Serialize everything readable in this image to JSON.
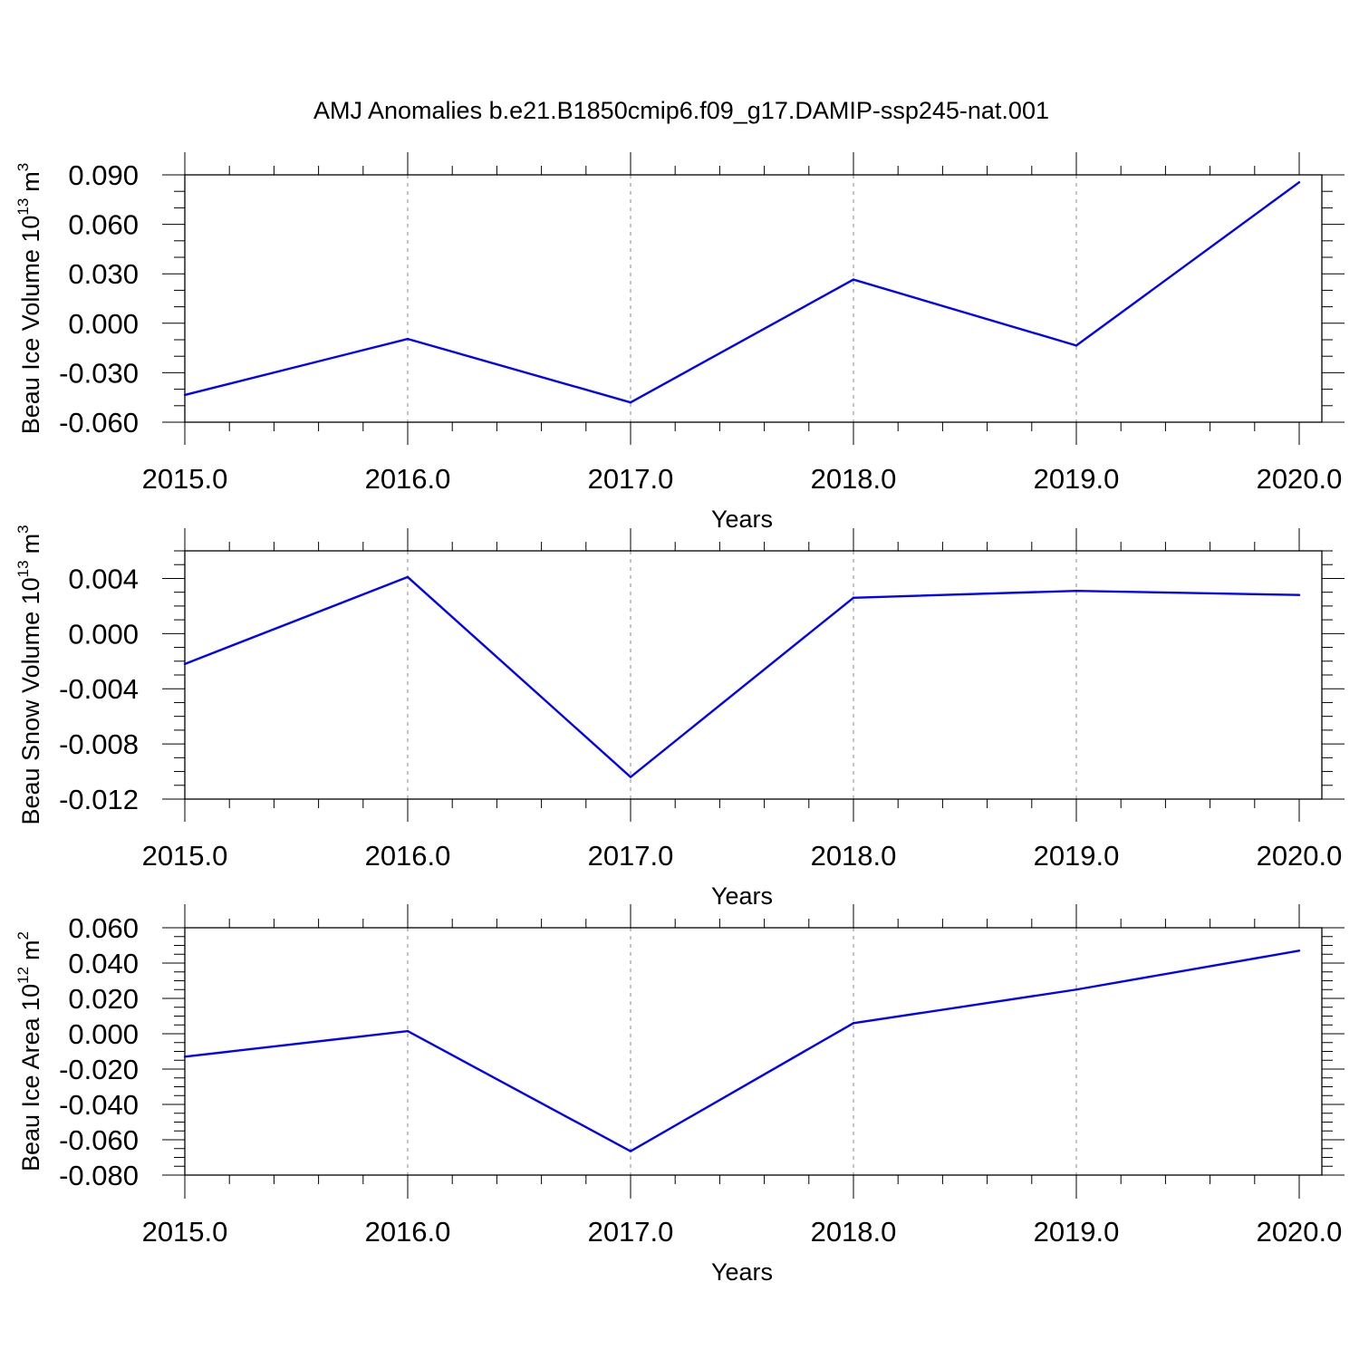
{
  "title": "AMJ Anomalies b.e21.B1850cmip6.f09_g17.DAMIP-ssp245-nat.001",
  "colors": {
    "line": "#0000ff",
    "axes": "#000000",
    "grid": "#888888"
  },
  "chart_data": [
    {
      "type": "line",
      "ylabel": "Beau Ice Volume 10",
      "ylabel_exp": "13",
      "ylabel_unit": "m",
      "ylabel_unit_exp": "3",
      "xlabel": "Years",
      "x": [
        2015,
        2016,
        2017,
        2018,
        2019,
        2020
      ],
      "xticks": [
        "2015.0",
        "2016.0",
        "2017.0",
        "2018.0",
        "2019.0",
        "2020.0"
      ],
      "values": [
        -0.0435,
        -0.0095,
        -0.048,
        0.0265,
        -0.0135,
        0.0855
      ],
      "ylim": [
        -0.06,
        0.09
      ],
      "yticks": [
        -0.06,
        -0.03,
        0.0,
        0.03,
        0.06,
        0.09
      ],
      "yticklabels": [
        "-0.060",
        "-0.030",
        "0.000",
        "0.030",
        "0.060",
        "0.090"
      ],
      "yminor_step": 0.01,
      "grid": "x only, dashed"
    },
    {
      "type": "line",
      "ylabel": "Beau Snow Volume 10",
      "ylabel_exp": "13",
      "ylabel_unit": "m",
      "ylabel_unit_exp": "3",
      "xlabel": "Years",
      "x": [
        2015,
        2016,
        2017,
        2018,
        2019,
        2020
      ],
      "xticks": [
        "2015.0",
        "2016.0",
        "2017.0",
        "2018.0",
        "2019.0",
        "2020.0"
      ],
      "values": [
        -0.0022,
        0.0041,
        -0.0104,
        0.0026,
        0.0031,
        0.0028
      ],
      "ylim": [
        -0.012,
        0.006
      ],
      "yticks": [
        -0.012,
        -0.008,
        -0.004,
        0.0,
        0.004
      ],
      "yticklabels": [
        "-0.012",
        "-0.008",
        "-0.004",
        "0.000",
        "0.004"
      ],
      "yminor_step": 0.001,
      "grid": "x only, dashed"
    },
    {
      "type": "line",
      "ylabel": "Beau Ice Area 10",
      "ylabel_exp": "12",
      "ylabel_unit": "m",
      "ylabel_unit_exp": "2",
      "xlabel": "Years",
      "x": [
        2015,
        2016,
        2017,
        2018,
        2019,
        2020
      ],
      "xticks": [
        "2015.0",
        "2016.0",
        "2017.0",
        "2018.0",
        "2019.0",
        "2020.0"
      ],
      "values": [
        -0.013,
        0.0015,
        -0.0665,
        0.006,
        0.025,
        0.047
      ],
      "ylim": [
        -0.08,
        0.06
      ],
      "yticks": [
        -0.08,
        -0.06,
        -0.04,
        -0.02,
        0.0,
        0.02,
        0.04,
        0.06
      ],
      "yticklabels": [
        "-0.080",
        "-0.060",
        "-0.040",
        "-0.020",
        "0.000",
        "0.020",
        "0.040",
        "0.060"
      ],
      "yminor_step": 0.005,
      "grid": "x only, dashed"
    }
  ]
}
